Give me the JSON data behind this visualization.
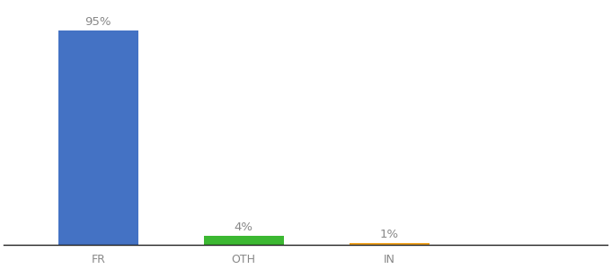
{
  "categories": [
    "FR",
    "OTH",
    "IN"
  ],
  "values": [
    95,
    4,
    1
  ],
  "bar_colors": [
    "#4472c4",
    "#3cb832",
    "#f5a623"
  ],
  "labels": [
    "95%",
    "4%",
    "1%"
  ],
  "background_color": "#ffffff",
  "ylim": [
    0,
    107
  ],
  "label_fontsize": 9.5,
  "tick_fontsize": 9,
  "bar_width": 0.55,
  "label_color": "#888888",
  "tick_color": "#888888",
  "spine_color": "#222222"
}
